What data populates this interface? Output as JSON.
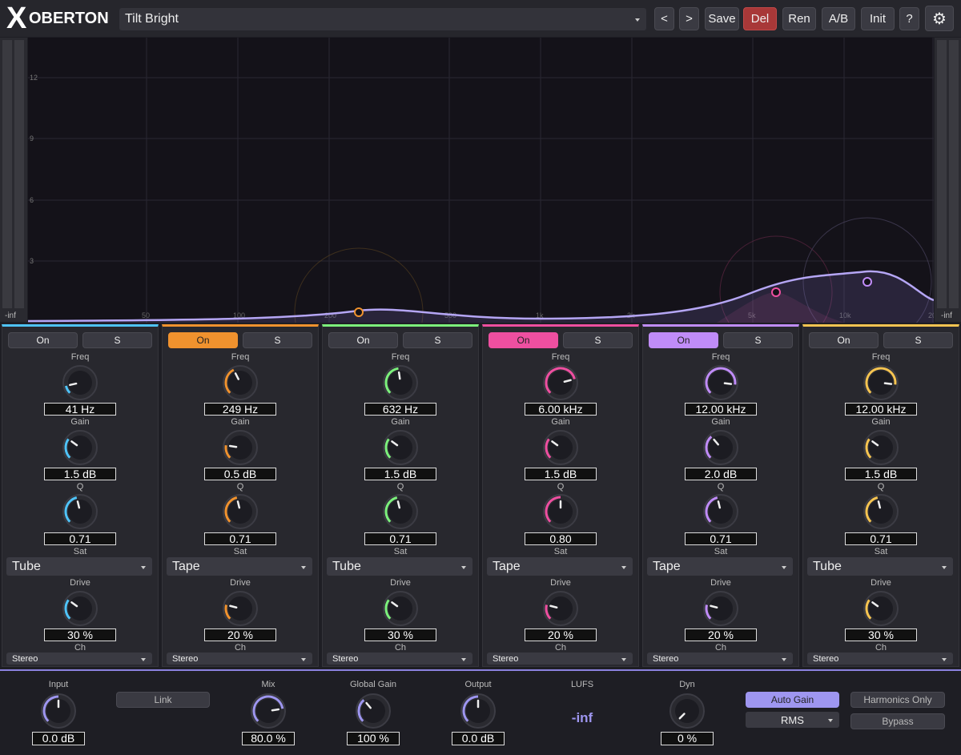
{
  "header": {
    "logo_mark": "X",
    "logo": "OBERTON",
    "preset": "Tilt Bright",
    "buttons": [
      "<",
      ">",
      "Save",
      "Del",
      "Ren",
      "A/B",
      "Init",
      "?"
    ]
  },
  "display": {
    "y_labels": [
      "12",
      "9",
      "6",
      "3"
    ],
    "x_labels": [
      "50",
      "100",
      "200",
      "500",
      "1k",
      "2k",
      "5k",
      "10k",
      "20k"
    ],
    "meter_left": "-inf",
    "meter_right": "-inf"
  },
  "band_labels": {
    "on": "On",
    "solo": "S",
    "freq": "Freq",
    "gain": "Gain",
    "q": "Q",
    "sat": "Sat",
    "drive": "Drive",
    "ch": "Ch"
  },
  "bands": [
    {
      "color": "#4fc3f7",
      "active": false,
      "freq": "41 Hz",
      "gain": "1.5 dB",
      "q": "0.71",
      "sat": "Tube",
      "drive": "30 %",
      "ch": "Stereo"
    },
    {
      "color": "#f0922e",
      "active": true,
      "freq": "249 Hz",
      "gain": "0.5 dB",
      "q": "0.71",
      "sat": "Tape",
      "drive": "20 %",
      "ch": "Stereo"
    },
    {
      "color": "#7cf07c",
      "active": false,
      "freq": "632 Hz",
      "gain": "1.5 dB",
      "q": "0.71",
      "sat": "Tube",
      "drive": "30 %",
      "ch": "Stereo"
    },
    {
      "color": "#ee4fa0",
      "active": true,
      "freq": "6.00 kHz",
      "gain": "1.5 dB",
      "q": "0.80",
      "sat": "Tape",
      "drive": "20 %",
      "ch": "Stereo"
    },
    {
      "color": "#c08cf8",
      "active": true,
      "freq": "12.00 kHz",
      "gain": "2.0 dB",
      "q": "0.71",
      "sat": "Tape",
      "drive": "20 %",
      "ch": "Stereo"
    },
    {
      "color": "#f5c451",
      "active": false,
      "freq": "12.00 kHz",
      "gain": "1.5 dB",
      "q": "0.71",
      "sat": "Tube",
      "drive": "30 %",
      "ch": "Stereo"
    }
  ],
  "footer": {
    "input_label": "Input",
    "input": "0.0 dB",
    "link": "Link",
    "mix_label": "Mix",
    "mix": "80.0 %",
    "global_gain_label": "Global Gain",
    "global_gain": "100 %",
    "output_label": "Output",
    "output": "0.0 dB",
    "lufs_label": "LUFS",
    "lufs": "-inf",
    "dyn_label": "Dyn",
    "dyn": "0 %",
    "auto_gain": "Auto Gain",
    "detector": "RMS",
    "harmonics_only": "Harmonics Only",
    "bypass": "Bypass"
  }
}
